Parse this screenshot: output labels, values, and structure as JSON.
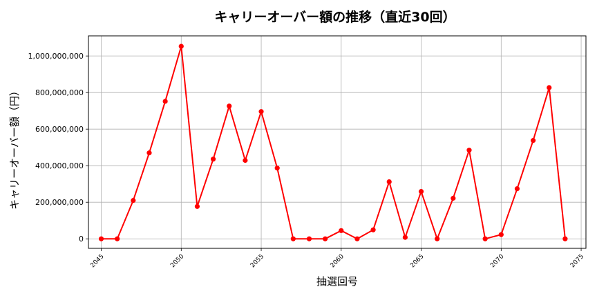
{
  "chart_data": {
    "type": "line",
    "title": "キャリーオーバー額の推移（直近30回）",
    "xlabel": "抽選回号",
    "ylabel": "キャリーオーバー額（円）",
    "x": [
      2045,
      2046,
      2047,
      2048,
      2049,
      2050,
      2051,
      2052,
      2053,
      2054,
      2055,
      2056,
      2057,
      2058,
      2059,
      2060,
      2061,
      2062,
      2063,
      2064,
      2065,
      2066,
      2067,
      2068,
      2069,
      2070,
      2071,
      2072,
      2073,
      2074
    ],
    "series": [
      {
        "name": "キャリーオーバー額",
        "color": "#ff0000",
        "marker": "circle",
        "values": [
          0,
          0,
          210000000,
          470000000,
          752000000,
          1053000000,
          177000000,
          436000000,
          726000000,
          429000000,
          696000000,
          387000000,
          0,
          0,
          0,
          45000000,
          0,
          49000000,
          312000000,
          8000000,
          259000000,
          0,
          222000000,
          485000000,
          0,
          23000000,
          274000000,
          538000000,
          827000000,
          0
        ]
      }
    ],
    "xlim": [
      2044.2,
      2075.3
    ],
    "ylim": [
      -52000000,
      1110000000
    ],
    "xticks": [
      2045,
      2050,
      2055,
      2060,
      2065,
      2070,
      2075
    ],
    "xtick_labels": [
      "2045",
      "2050",
      "2055",
      "2060",
      "2065",
      "2070",
      "2075"
    ],
    "yticks": [
      0,
      200000000,
      400000000,
      600000000,
      800000000,
      1000000000
    ],
    "ytick_labels": [
      "0",
      "200,000,000",
      "400,000,000",
      "600,000,000",
      "800,000,000",
      "1,000,000,000"
    ],
    "grid": true,
    "legend": null
  },
  "colors": {
    "line": "#ff0000",
    "grid": "#b0b0b0",
    "axes": "#000000"
  }
}
